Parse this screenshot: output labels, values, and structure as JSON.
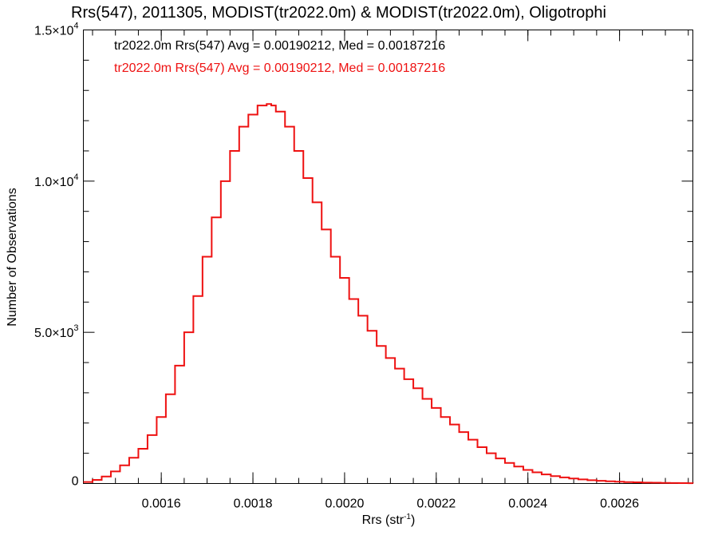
{
  "chart_data": {
    "type": "line",
    "title": "Rrs(547), 2011305, MODIST(tr2022.0m) & MODIST(tr2022.0m), Oligotrophi",
    "xlabel": "Rrs (str",
    "xlabel_sup": "-1",
    "xlabel_close": ")",
    "ylabel": "Number of Observations",
    "xlim": [
      0.00143,
      0.00276
    ],
    "ylim": [
      0,
      15000
    ],
    "xticks": [
      {
        "value": 0.0016,
        "label": "0.0016"
      },
      {
        "value": 0.0018,
        "label": "0.0018"
      },
      {
        "value": 0.002,
        "label": "0.0020"
      },
      {
        "value": 0.0022,
        "label": "0.0022"
      },
      {
        "value": 0.0024,
        "label": "0.0024"
      },
      {
        "value": 0.0026,
        "label": "0.0026"
      }
    ],
    "yticks": [
      {
        "value": 0,
        "base": "0",
        "exp": ""
      },
      {
        "value": 5000,
        "base": "5.0×10",
        "exp": "3"
      },
      {
        "value": 10000,
        "base": "1.0×10",
        "exp": "4"
      },
      {
        "value": 15000,
        "base": "1.5×10",
        "exp": "4"
      }
    ],
    "annotations": [
      {
        "text": "tr2022.0m Rrs(547) Avg = 0.00190212, Med = 0.00187216",
        "color": "#000000"
      },
      {
        "text": "tr2022.0m Rrs(547) Avg = 0.00190212, Med = 0.00187216",
        "color": "#ee1111"
      }
    ],
    "grid": false,
    "series": [
      {
        "color": "#ee1111",
        "step": true,
        "x": [
          0.00143,
          0.00145,
          0.00147,
          0.00149,
          0.00151,
          0.00153,
          0.00155,
          0.00157,
          0.00159,
          0.00161,
          0.00163,
          0.00165,
          0.00167,
          0.00169,
          0.00171,
          0.00173,
          0.00175,
          0.00177,
          0.00179,
          0.00181,
          0.00183,
          0.00184,
          0.00185,
          0.00187,
          0.00189,
          0.00191,
          0.00193,
          0.00195,
          0.00197,
          0.00199,
          0.00201,
          0.00203,
          0.00205,
          0.00207,
          0.00209,
          0.00211,
          0.00213,
          0.00215,
          0.00217,
          0.00219,
          0.00221,
          0.00223,
          0.00225,
          0.00227,
          0.00229,
          0.00231,
          0.00233,
          0.00235,
          0.00237,
          0.00239,
          0.00241,
          0.00243,
          0.00245,
          0.00247,
          0.00249,
          0.00251,
          0.00253,
          0.00255,
          0.00257,
          0.00259,
          0.00261,
          0.00263,
          0.00265,
          0.00267,
          0.00269,
          0.00271,
          0.00273,
          0.00275,
          0.00276
        ],
        "y": [
          50,
          120,
          230,
          400,
          600,
          850,
          1150,
          1600,
          2200,
          2950,
          3900,
          5000,
          6200,
          7500,
          8800,
          10000,
          11000,
          11800,
          12200,
          12500,
          12550,
          12500,
          12300,
          11800,
          11000,
          10100,
          9300,
          8400,
          7500,
          6800,
          6100,
          5550,
          5050,
          4550,
          4150,
          3800,
          3450,
          3150,
          2800,
          2500,
          2200,
          1950,
          1700,
          1450,
          1200,
          1000,
          830,
          680,
          560,
          450,
          370,
          300,
          245,
          200,
          165,
          135,
          110,
          90,
          72,
          58,
          47,
          38,
          31,
          25,
          20,
          16,
          12,
          9,
          7
        ]
      }
    ]
  }
}
